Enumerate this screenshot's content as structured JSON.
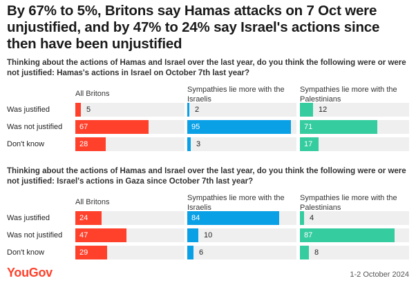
{
  "title": "By 67% to 5%, Britons say Hamas attacks on 7 Oct were unjustified, and by 47% to 24% say Israel's actions since then have been unjustified",
  "colors": {
    "all": "#ff412c",
    "israelis": "#0aa0e6",
    "palestinians": "#35cc9f",
    "track": "#efefef"
  },
  "chart_data": [
    {
      "type": "bar",
      "title": "Thinking about the actions of Hamas and Israel over the last year, do you think the following were or were not justified: Hamas's actions in Israel on October 7th last year?",
      "categories": [
        "Was justified",
        "Was not justified",
        "Don't know"
      ],
      "series": [
        {
          "name": "All Britons",
          "values": [
            5,
            67,
            28
          ]
        },
        {
          "name": "Sympathies lie more with the Israelis",
          "values": [
            2,
            95,
            3
          ]
        },
        {
          "name": "Sympathies lie more with the Palestinians",
          "values": [
            12,
            71,
            17
          ]
        }
      ],
      "ylim": [
        0,
        100
      ]
    },
    {
      "type": "bar",
      "title": "Thinking about the actions of Hamas and Israel over the last year, do you think the following were or were not justified: Israel's actions in Gaza since October 7th last year?",
      "categories": [
        "Was justified",
        "Was not justified",
        "Don't know"
      ],
      "series": [
        {
          "name": "All Britons",
          "values": [
            24,
            47,
            29
          ]
        },
        {
          "name": "Sympathies lie more with the Israelis",
          "values": [
            84,
            10,
            6
          ]
        },
        {
          "name": "Sympathies lie more with the Palestinians",
          "values": [
            4,
            87,
            8
          ]
        }
      ],
      "ylim": [
        0,
        100
      ]
    }
  ],
  "footer": {
    "logo": "YouGov",
    "date": "1-2 October 2024"
  }
}
